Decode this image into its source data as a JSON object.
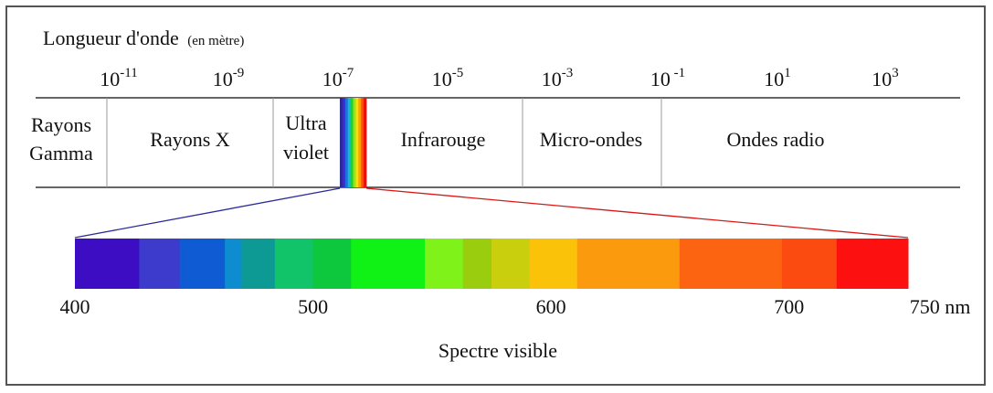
{
  "title": {
    "main": "Longueur d'onde",
    "unit": "(en mètre)"
  },
  "wavelength_ticks": [
    {
      "base": "10",
      "exp": "-11"
    },
    {
      "base": "10",
      "exp": "-9"
    },
    {
      "base": "10",
      "exp": "-7"
    },
    {
      "base": "10",
      "exp": "-5"
    },
    {
      "base": "10",
      "exp": "-3"
    },
    {
      "base": "10",
      "exp": " -1"
    },
    {
      "base": "10",
      "exp": "1"
    },
    {
      "base": "10",
      "exp": "3"
    }
  ],
  "bands": [
    {
      "line1": "Rayons",
      "line2": "Gamma"
    },
    {
      "line1": "Rayons X",
      "line2": ""
    },
    {
      "line1": "Ultra",
      "line2": "violet"
    },
    {
      "line1": "Infrarouge",
      "line2": ""
    },
    {
      "line1": "Micro-ondes",
      "line2": ""
    },
    {
      "line1": "Ondes radio",
      "line2": ""
    }
  ],
  "visible_spectrum": {
    "label": "Spectre visible",
    "scale": [
      {
        "value": 400,
        "label": "400"
      },
      {
        "value": 500,
        "label": "500"
      },
      {
        "value": 600,
        "label": "600"
      },
      {
        "value": 700,
        "label": "700"
      },
      {
        "value": 750,
        "label": "750 nm"
      }
    ],
    "range_nm": [
      400,
      750
    ],
    "segments": [
      {
        "from": 400,
        "to": 427,
        "color": "#3d0dc4"
      },
      {
        "from": 427,
        "to": 444,
        "color": "#3c3bcb"
      },
      {
        "from": 444,
        "to": 463,
        "color": "#0e5bd3"
      },
      {
        "from": 463,
        "to": 470,
        "color": "#0d8ccf"
      },
      {
        "from": 470,
        "to": 484,
        "color": "#0e9a94"
      },
      {
        "from": 484,
        "to": 500,
        "color": "#11c46a"
      },
      {
        "from": 500,
        "to": 516,
        "color": "#0dc83d"
      },
      {
        "from": 516,
        "to": 547,
        "color": "#10f115"
      },
      {
        "from": 547,
        "to": 563,
        "color": "#7ff21a"
      },
      {
        "from": 563,
        "to": 575,
        "color": "#9acd0d"
      },
      {
        "from": 575,
        "to": 591,
        "color": "#c9cf0c"
      },
      {
        "from": 591,
        "to": 611,
        "color": "#fbc20a"
      },
      {
        "from": 611,
        "to": 654,
        "color": "#fb9a0c"
      },
      {
        "from": 654,
        "to": 697,
        "color": "#fd6411"
      },
      {
        "from": 697,
        "to": 720,
        "color": "#fc4b10"
      },
      {
        "from": 720,
        "to": 750,
        "color": "#fc1110"
      }
    ]
  },
  "colors": {
    "connector_left": "#2b2b9a",
    "connector_right": "#d81818",
    "rainbow_strip": [
      "#2a2a9a",
      "#3b2bd0",
      "#1f6fe0",
      "#18b8c8",
      "#18d040",
      "#a0e010",
      "#f0e010",
      "#ffa000",
      "#ff5000",
      "#e81010"
    ]
  }
}
